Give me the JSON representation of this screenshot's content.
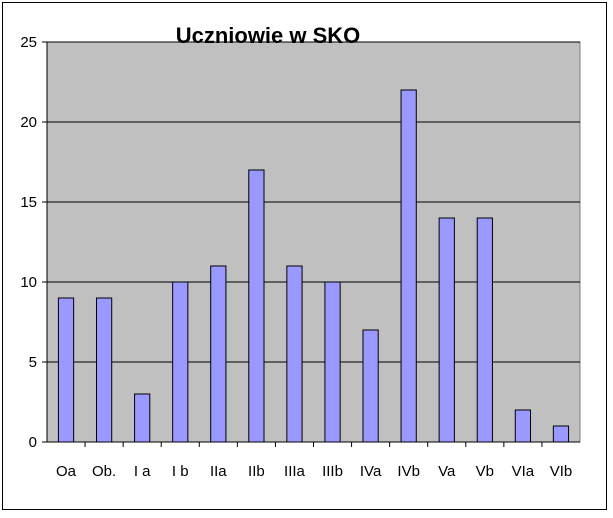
{
  "chart_data": {
    "type": "bar",
    "title": "Uczniowie w SKO",
    "categories": [
      "Oa",
      "Ob.",
      "I a",
      "I b",
      "IIa",
      "IIb",
      "IIIa",
      "IIIb",
      "IVa",
      "IVb",
      "Va",
      "Vb",
      "VIa",
      "VIb"
    ],
    "values": [
      9,
      9,
      3,
      10,
      11,
      17,
      11,
      10,
      7,
      22,
      14,
      14,
      2,
      1
    ],
    "ylim": [
      0,
      25
    ],
    "yticks": [
      0,
      5,
      10,
      15,
      20,
      25
    ],
    "grid": true,
    "legend": "none",
    "colors": {
      "plot_background": "#c0c0c0",
      "bar_fill": "#9999ff",
      "bar_stroke": "#000000",
      "grid": "#000000"
    }
  }
}
